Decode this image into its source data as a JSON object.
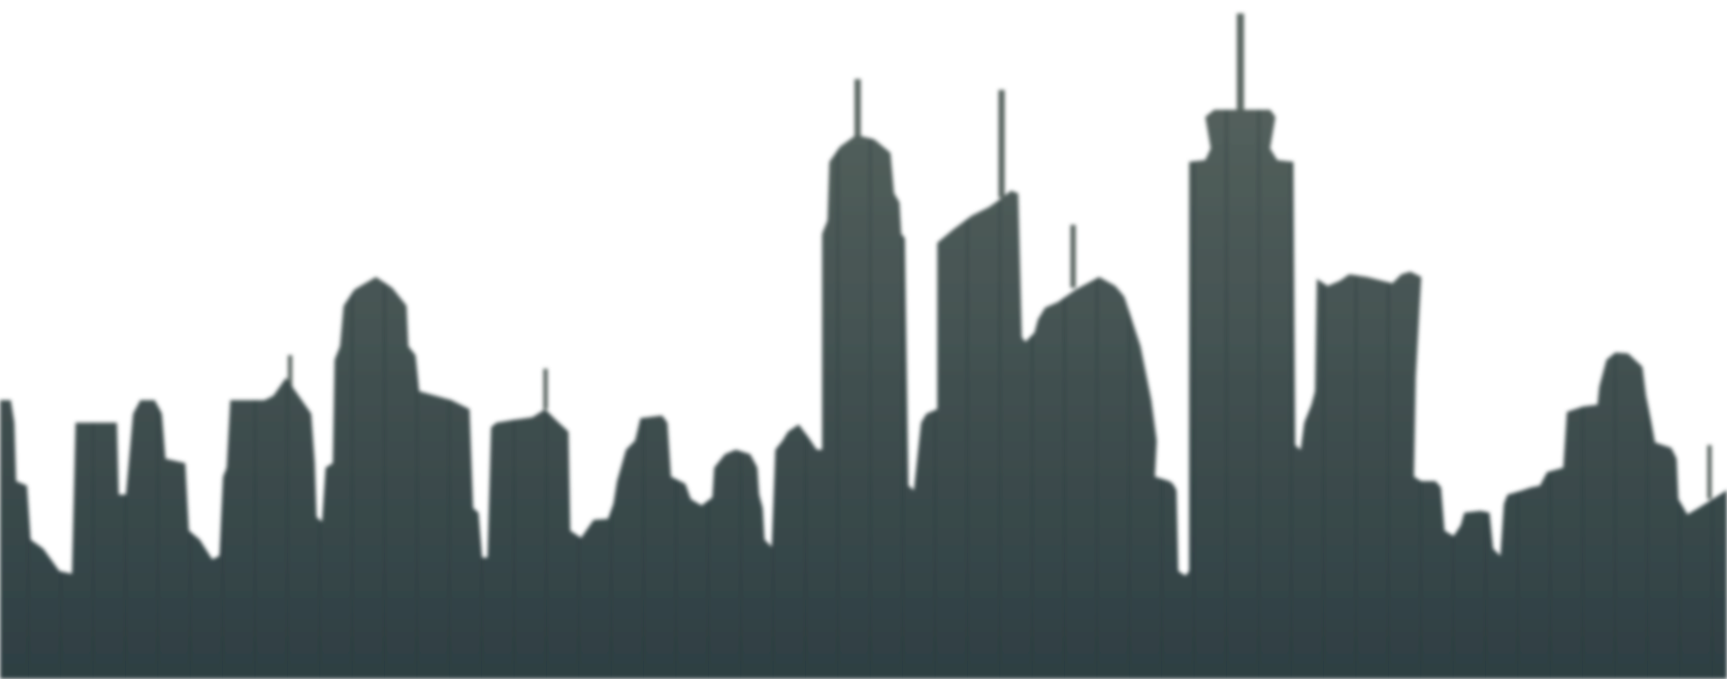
{
  "image": {
    "subject": "city-skyline-silhouette",
    "colors": {
      "background": "#ffffff",
      "silhouette_top": "#5a6661",
      "silhouette_bottom": "#2e3f43",
      "stripe": "#24363a"
    }
  }
}
